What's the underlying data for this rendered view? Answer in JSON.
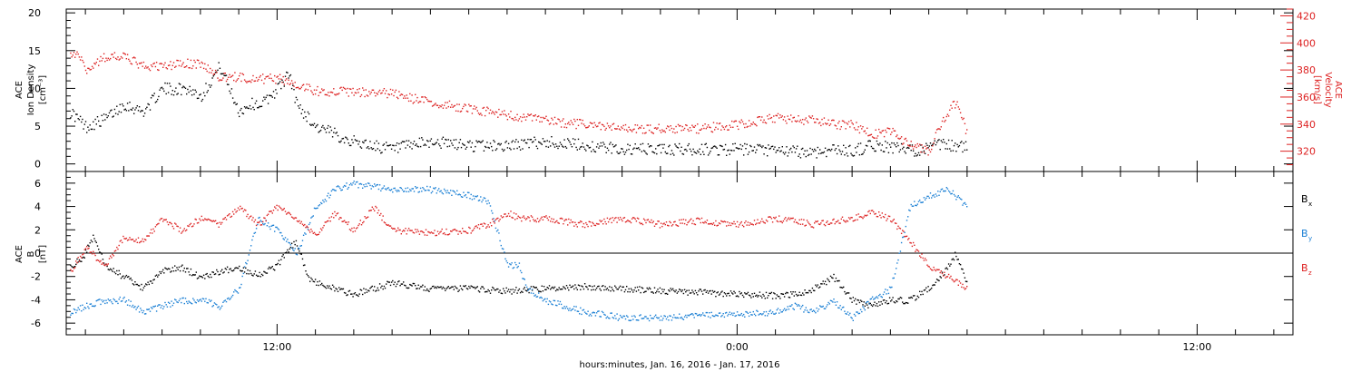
{
  "chart_data": [
    {
      "type": "scatter",
      "panel": "top",
      "ylabel": [
        "ACE",
        "Ion Density",
        "[cm⁻³]"
      ],
      "y2label": [
        "ACE",
        "Velocity",
        "[km/s]"
      ],
      "ylim": [
        -1,
        20.5
      ],
      "yticks": [
        0,
        5,
        10,
        15,
        20
      ],
      "y2lim": [
        305,
        425
      ],
      "y2ticks": [
        320,
        340,
        360,
        380,
        400,
        420
      ],
      "xlim": [
        6.5,
        38.5
      ],
      "colors": {
        "density": "#000000",
        "velocity": "#dd2222"
      },
      "series": [
        {
          "axis": "left",
          "x": [
            6.6,
            7.0,
            7.5,
            8.0,
            8.5,
            9.0,
            9.3,
            9.7,
            10.0,
            10.5,
            11.0,
            11.3,
            11.6,
            12.0,
            12.3,
            12.5,
            13.0,
            14.0,
            15.0,
            16.0,
            17.0,
            18.0,
            19.0,
            20.0,
            21.0,
            22.0,
            23.0,
            24.0,
            25.0,
            26.0,
            26.5,
            27.0,
            27.5,
            28.0,
            28.5,
            29.0,
            29.3,
            30.0
          ],
          "y": [
            7,
            5,
            6,
            8,
            7,
            10,
            10,
            10,
            9,
            13,
            7,
            8,
            8,
            10,
            12,
            8,
            5,
            3,
            2,
            3,
            2.5,
            2.5,
            3,
            2.5,
            2,
            2,
            2,
            2,
            1.8,
            1.6,
            2,
            1.8,
            2.5,
            2.3,
            1.8,
            2.2,
            2.6,
            2.3
          ]
        },
        {
          "axis": "right",
          "x": [
            6.6,
            6.8,
            7.0,
            7.5,
            8.0,
            8.5,
            9.0,
            9.5,
            10.0,
            10.5,
            11.0,
            11.5,
            12.0,
            12.5,
            13.0,
            14.0,
            15.0,
            16.0,
            17.0,
            18.0,
            19.0,
            20.0,
            21.0,
            22.0,
            23.0,
            24.0,
            25.0,
            26.0,
            26.5,
            27.0,
            27.5,
            28.0,
            28.5,
            29.0,
            29.3,
            29.7,
            30.0
          ],
          "y": [
            390,
            395,
            380,
            390,
            390,
            383,
            383,
            385,
            385,
            375,
            375,
            374,
            374,
            370,
            365,
            364,
            363,
            356,
            352,
            347,
            343,
            340,
            337,
            337,
            337,
            340,
            345,
            343,
            340,
            340,
            333,
            335,
            325,
            320,
            340,
            357,
            333
          ]
        }
      ]
    },
    {
      "type": "scatter",
      "panel": "bottom",
      "ylabel": [
        "ACE",
        "B",
        "[nT]"
      ],
      "ylim": [
        -7,
        7
      ],
      "yticks": [
        -6,
        -4,
        -2,
        0,
        2,
        4,
        6
      ],
      "xlim": [
        6.5,
        38.5
      ],
      "xticks_major": [
        12,
        24,
        36
      ],
      "xticklabels": [
        "12:00",
        "0:00",
        "12:00"
      ],
      "xlabel": "hours:minutes, Jan. 16, 2016 - Jan. 17, 2016",
      "zero_line": true,
      "legend_position": "right",
      "colors": {
        "Bx": "#000000",
        "By": "#1a7fd4",
        "Bz": "#dd2222"
      },
      "series": [
        {
          "name": "B",
          "sub": "x",
          "x": [
            6.6,
            6.9,
            7.2,
            7.5,
            8.0,
            8.5,
            9.0,
            9.5,
            10.0,
            10.5,
            11.0,
            11.5,
            12.0,
            12.3,
            12.5,
            12.8,
            13.0,
            14.0,
            15.0,
            16.0,
            17.0,
            18.0,
            19.0,
            20.0,
            21.0,
            22.0,
            23.0,
            24.0,
            25.0,
            25.5,
            26.0,
            26.5,
            27.0,
            27.5,
            28.0,
            28.5,
            29.0,
            29.3,
            29.7,
            30.0
          ],
          "y": [
            -1,
            -0.5,
            1.5,
            -1,
            -2,
            -3,
            -1.5,
            -1.2,
            -2,
            -1.5,
            -1.2,
            -1.8,
            -1,
            0.5,
            1,
            -2,
            -2.5,
            -3.5,
            -2.5,
            -3,
            -3,
            -3.2,
            -3,
            -2.8,
            -3,
            -3.2,
            -3.3,
            -3.5,
            -3.6,
            -3.5,
            -3,
            -2,
            -4,
            -4.5,
            -4,
            -4,
            -3,
            -2,
            0,
            -2.5
          ]
        },
        {
          "name": "B",
          "sub": "y",
          "x": [
            6.6,
            7.0,
            7.5,
            8.0,
            8.5,
            9.0,
            9.5,
            10.0,
            10.5,
            11.0,
            11.5,
            12.0,
            12.5,
            13.0,
            13.5,
            14.0,
            15.0,
            16.0,
            17.0,
            17.5,
            18.0,
            18.3,
            18.5,
            19.0,
            20.0,
            21.0,
            22.0,
            23.0,
            24.0,
            25.0,
            25.5,
            26.0,
            26.5,
            27.0,
            27.5,
            28.0,
            28.5,
            29.0,
            29.5,
            30.0
          ],
          "y": [
            -5,
            -4.5,
            -4,
            -4,
            -5,
            -4.5,
            -4,
            -4,
            -4.5,
            -3,
            3,
            2,
            0,
            4,
            5.5,
            6,
            5.5,
            5.5,
            5,
            4.5,
            -1,
            -1,
            -3,
            -4,
            -5,
            -5.5,
            -5.5,
            -5.3,
            -5.2,
            -5,
            -4.5,
            -5,
            -4,
            -5.5,
            -4,
            -3,
            4,
            5,
            5.5,
            4
          ]
        },
        {
          "name": "B",
          "sub": "z",
          "x": [
            6.6,
            7.0,
            7.5,
            8.0,
            8.5,
            9.0,
            9.5,
            10.0,
            10.5,
            11.0,
            11.5,
            12.0,
            12.5,
            13.0,
            13.5,
            14.0,
            14.5,
            15.0,
            16.0,
            17.0,
            17.5,
            18.0,
            18.3,
            18.5,
            19.0,
            20.0,
            21.0,
            22.0,
            23.0,
            24.0,
            25.0,
            25.5,
            26.0,
            27.0,
            27.5,
            28.0,
            28.5,
            29.0,
            29.5,
            30.0
          ],
          "y": [
            -1.5,
            0.5,
            -1,
            1.5,
            1,
            3,
            2,
            3,
            2.5,
            4,
            2.5,
            4,
            3,
            1.5,
            3.5,
            2,
            4,
            2,
            1.8,
            2,
            2.5,
            3.5,
            3,
            3,
            3,
            2.5,
            3,
            2.5,
            2.8,
            2.5,
            3,
            2.8,
            2.5,
            3,
            3.5,
            3,
            1,
            -1,
            -2,
            -3
          ]
        }
      ]
    }
  ]
}
